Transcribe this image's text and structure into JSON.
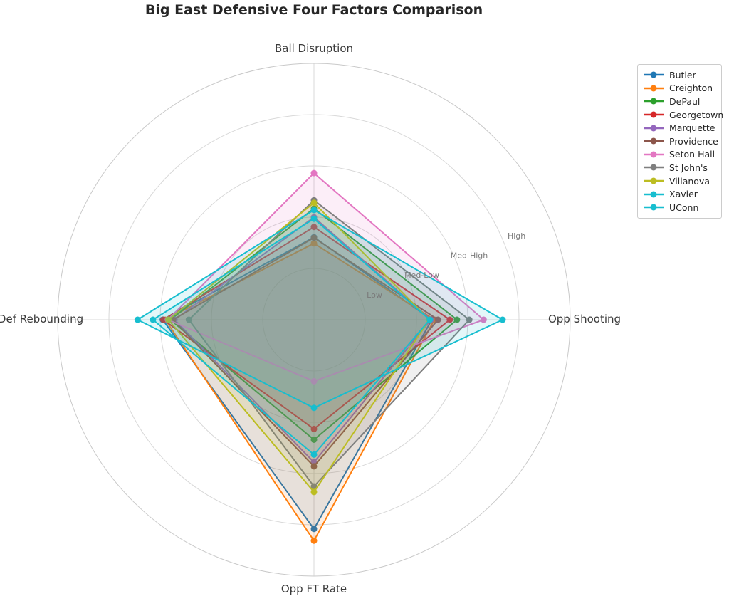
{
  "title": "Big East Defensive Four Factors Comparison",
  "colors": {
    "background": "#ffffff",
    "grid": "#d8d8d8",
    "outer_ring": "#c9c9c9",
    "axis_label": "#3a3a3a",
    "tick_label": "#7a7a7a",
    "title": "#262626",
    "legend_border": "#cccccc"
  },
  "chart_data": {
    "type": "radar",
    "title": "Big East Defensive Four Factors Comparison",
    "categories": [
      "Ball Disruption",
      "Opp Shooting",
      "Opp FT Rate",
      "Def Rebounding"
    ],
    "radial_ticks": {
      "values": [
        1,
        2,
        3,
        4
      ],
      "labels": [
        "Low",
        "Med-Low",
        "Med-High",
        "High"
      ]
    },
    "r_max": 5,
    "tick_label_angle_deg": 22.5,
    "grid": true,
    "legend_position": "upper right",
    "fill_opacity": 0.12,
    "series": [
      {
        "name": "Butler",
        "color": "#1f77b4",
        "values": [
          1.61,
          2.3,
          4.08,
          2.95
        ]
      },
      {
        "name": "Creighton",
        "color": "#ff7f0e",
        "values": [
          1.49,
          2.35,
          4.31,
          2.9
        ]
      },
      {
        "name": "DePaul",
        "color": "#2ca02c",
        "values": [
          2.17,
          2.79,
          2.34,
          2.8
        ]
      },
      {
        "name": "Georgetown",
        "color": "#d62728",
        "values": [
          1.81,
          2.65,
          2.13,
          2.94
        ]
      },
      {
        "name": "Marquette",
        "color": "#9467bd",
        "values": [
          2.0,
          2.28,
          2.78,
          2.72
        ]
      },
      {
        "name": "Providence",
        "color": "#8c564b",
        "values": [
          1.6,
          2.42,
          2.86,
          2.75
        ]
      },
      {
        "name": "Seton Hall",
        "color": "#e377c2",
        "values": [
          2.86,
          3.31,
          1.2,
          2.85
        ]
      },
      {
        "name": "St John's",
        "color": "#7f7f7f",
        "values": [
          2.33,
          3.03,
          3.25,
          2.44
        ]
      },
      {
        "name": "Villanova",
        "color": "#bcbd22",
        "values": [
          2.28,
          2.25,
          3.36,
          2.84
        ]
      },
      {
        "name": "Xavier",
        "color": "#17becf",
        "values": [
          2.14,
          3.68,
          1.72,
          3.44
        ]
      },
      {
        "name": "UConn",
        "color": "#17becf",
        "values": [
          1.97,
          2.26,
          2.63,
          3.14
        ]
      }
    ]
  }
}
